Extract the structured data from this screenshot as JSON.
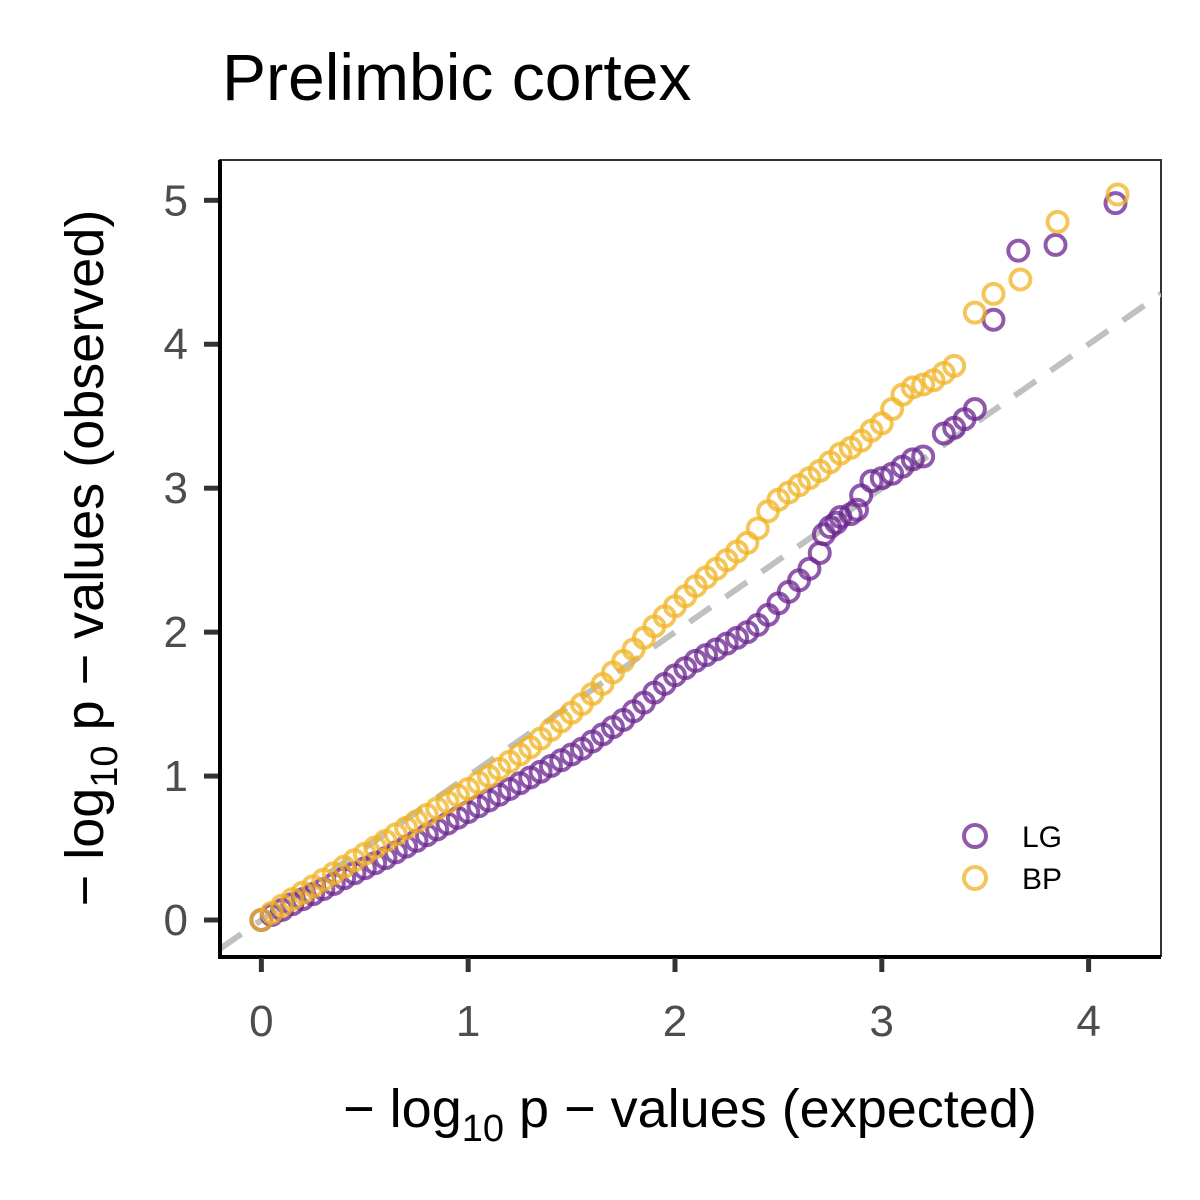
{
  "chart_data": {
    "type": "scatter",
    "title": "Prelimbic cortex",
    "xlabel": {
      "prefix": "− log",
      "sub": "10",
      "suffix": " p − values (expected)"
    },
    "ylabel": {
      "prefix": "− log",
      "sub": "10",
      "suffix": " p − values (observed)"
    },
    "xlim": [
      -0.2,
      4.35
    ],
    "ylim": [
      -0.25,
      5.28
    ],
    "x_ticks": [
      {
        "value": 0,
        "label": "0"
      },
      {
        "value": 1,
        "label": "1"
      },
      {
        "value": 2,
        "label": "2"
      },
      {
        "value": 3,
        "label": "3"
      },
      {
        "value": 4,
        "label": "4"
      }
    ],
    "y_ticks": [
      {
        "value": 0,
        "label": "0"
      },
      {
        "value": 1,
        "label": "1"
      },
      {
        "value": 2,
        "label": "2"
      },
      {
        "value": 3,
        "label": "3"
      },
      {
        "value": 4,
        "label": "4"
      },
      {
        "value": 5,
        "label": "5"
      }
    ],
    "grid": false,
    "reference_line": {
      "slope": 1,
      "intercept": 0,
      "style": "dashed",
      "color": "#c0c0c0"
    },
    "legend_position": "bottom-right",
    "series": [
      {
        "name": "LG",
        "color": "#6a238f",
        "x": [
          0,
          0.05,
          0.1,
          0.15,
          0.2,
          0.25,
          0.3,
          0.35,
          0.4,
          0.45,
          0.5,
          0.55,
          0.6,
          0.65,
          0.7,
          0.75,
          0.8,
          0.85,
          0.9,
          0.95,
          1.0,
          1.05,
          1.1,
          1.15,
          1.2,
          1.25,
          1.3,
          1.35,
          1.4,
          1.45,
          1.5,
          1.55,
          1.6,
          1.65,
          1.7,
          1.75,
          1.8,
          1.85,
          1.9,
          1.95,
          2.0,
          2.05,
          2.1,
          2.15,
          2.2,
          2.25,
          2.3,
          2.35,
          2.4,
          2.45,
          2.5,
          2.55,
          2.6,
          2.65,
          2.7,
          2.72,
          2.75,
          2.78,
          2.8,
          2.85,
          2.88,
          2.9,
          2.95,
          3.0,
          3.05,
          3.1,
          3.15,
          3.2,
          3.3,
          3.35,
          3.4,
          3.45,
          3.54,
          3.66,
          3.84,
          4.13
        ],
        "y": [
          0,
          0.035,
          0.07,
          0.11,
          0.145,
          0.18,
          0.215,
          0.25,
          0.29,
          0.325,
          0.36,
          0.395,
          0.43,
          0.47,
          0.51,
          0.55,
          0.59,
          0.63,
          0.67,
          0.71,
          0.75,
          0.79,
          0.83,
          0.87,
          0.91,
          0.95,
          0.99,
          1.03,
          1.07,
          1.11,
          1.15,
          1.19,
          1.24,
          1.29,
          1.34,
          1.39,
          1.45,
          1.51,
          1.58,
          1.64,
          1.7,
          1.75,
          1.8,
          1.84,
          1.88,
          1.92,
          1.96,
          2.0,
          2.05,
          2.12,
          2.2,
          2.28,
          2.36,
          2.44,
          2.55,
          2.68,
          2.73,
          2.76,
          2.8,
          2.82,
          2.85,
          2.95,
          3.05,
          3.07,
          3.1,
          3.15,
          3.2,
          3.22,
          3.38,
          3.42,
          3.48,
          3.55,
          4.17,
          4.65,
          4.69,
          4.98
        ]
      },
      {
        "name": "BP",
        "color": "#f0b323",
        "x": [
          0,
          0.05,
          0.1,
          0.15,
          0.2,
          0.25,
          0.3,
          0.35,
          0.4,
          0.45,
          0.5,
          0.55,
          0.6,
          0.65,
          0.7,
          0.75,
          0.8,
          0.85,
          0.9,
          0.95,
          1.0,
          1.05,
          1.1,
          1.15,
          1.2,
          1.25,
          1.3,
          1.35,
          1.4,
          1.45,
          1.5,
          1.55,
          1.6,
          1.65,
          1.7,
          1.75,
          1.8,
          1.85,
          1.9,
          1.95,
          2.0,
          2.05,
          2.1,
          2.15,
          2.2,
          2.25,
          2.3,
          2.35,
          2.4,
          2.45,
          2.5,
          2.55,
          2.6,
          2.65,
          2.7,
          2.75,
          2.8,
          2.85,
          2.9,
          2.95,
          3.0,
          3.05,
          3.1,
          3.15,
          3.2,
          3.25,
          3.3,
          3.35,
          3.45,
          3.54,
          3.67,
          3.85,
          4.14
        ],
        "y": [
          0,
          0.05,
          0.1,
          0.145,
          0.19,
          0.235,
          0.28,
          0.325,
          0.37,
          0.415,
          0.46,
          0.505,
          0.55,
          0.595,
          0.64,
          0.685,
          0.73,
          0.775,
          0.82,
          0.865,
          0.91,
          0.955,
          1.0,
          1.05,
          1.1,
          1.15,
          1.2,
          1.26,
          1.32,
          1.38,
          1.44,
          1.5,
          1.57,
          1.64,
          1.72,
          1.8,
          1.88,
          1.96,
          2.04,
          2.11,
          2.18,
          2.25,
          2.32,
          2.38,
          2.44,
          2.5,
          2.56,
          2.62,
          2.72,
          2.84,
          2.92,
          2.97,
          3.02,
          3.07,
          3.12,
          3.18,
          3.24,
          3.28,
          3.33,
          3.4,
          3.45,
          3.55,
          3.65,
          3.7,
          3.72,
          3.75,
          3.8,
          3.85,
          4.22,
          4.35,
          4.45,
          4.85,
          5.04
        ]
      }
    ]
  }
}
